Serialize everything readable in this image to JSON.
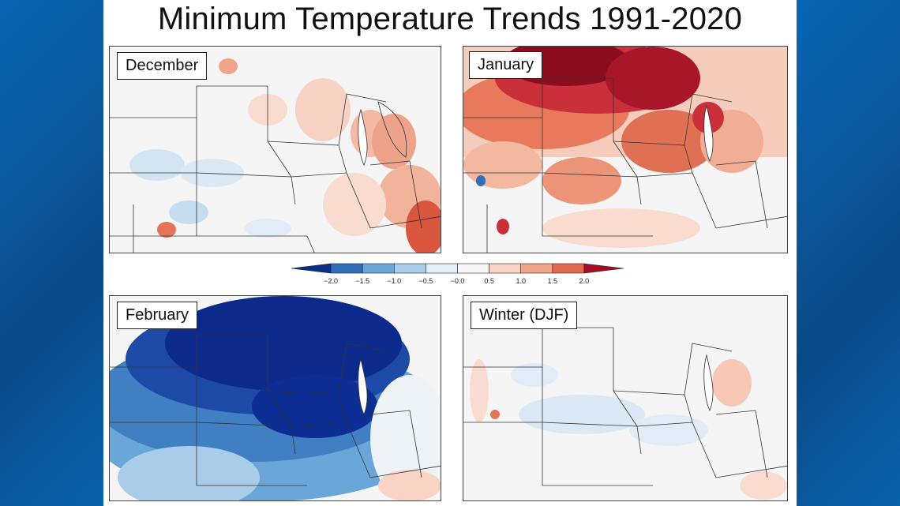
{
  "title": "Minimum Temperature Trends 1991-2020",
  "panels": [
    {
      "label": "December",
      "trend": "mixed-warm-east"
    },
    {
      "label": "January",
      "trend": "strong-warm-north"
    },
    {
      "label": "February",
      "trend": "strong-cold-north"
    },
    {
      "label": "Winter (DJF)",
      "trend": "near-neutral"
    }
  ],
  "colorbar": {
    "ticks": [
      "−2.0",
      "−1.5",
      "−1.0",
      "−0.5",
      "−0.0",
      "0.5",
      "1.0",
      "1.5",
      "2.0"
    ],
    "colors": [
      "#0a2e8a",
      "#2f6fb8",
      "#6aa6d8",
      "#a9cde9",
      "#e4eef6",
      "#f7f7f7",
      "#f9d4c4",
      "#f0a489",
      "#e06a4e",
      "#a50f24"
    ]
  }
}
